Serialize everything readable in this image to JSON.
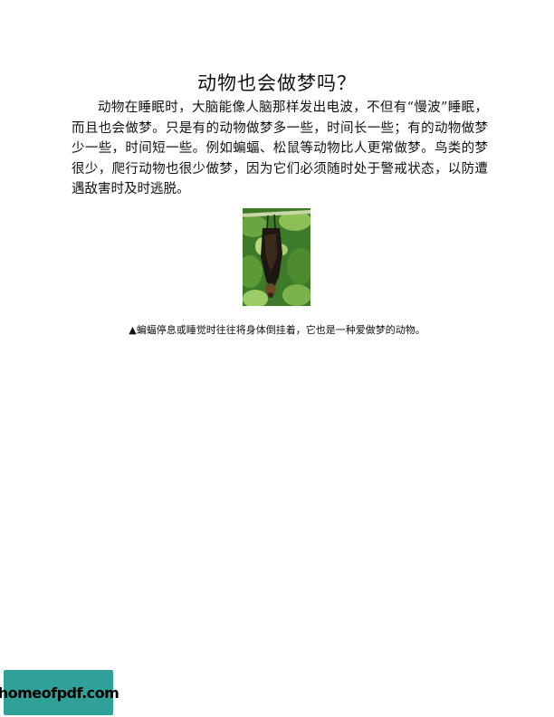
{
  "document": {
    "title": "动物也会做梦吗？",
    "paragraph": "动物在睡眠时，大脑能像人脑那样发出电波，不但有“慢波”睡眠，而且也会做梦。只是有的动物做梦多一些，时间长一些；有的动物做梦少一些，时间短一些。例如蝙蝠、松鼠等动物比人更常做梦。鸟类的梦很少，爬行动物也很少做梦，因为它们必须随时处于警戒状态，以防遭遇敌害时及时逃脱。",
    "caption": "▲蝙蝠停息或睡觉时往往将身体倒挂着，它也是一种爱做梦的动物。"
  },
  "watermark": {
    "text": "homeofpdf.com",
    "color": "#2fa198"
  }
}
